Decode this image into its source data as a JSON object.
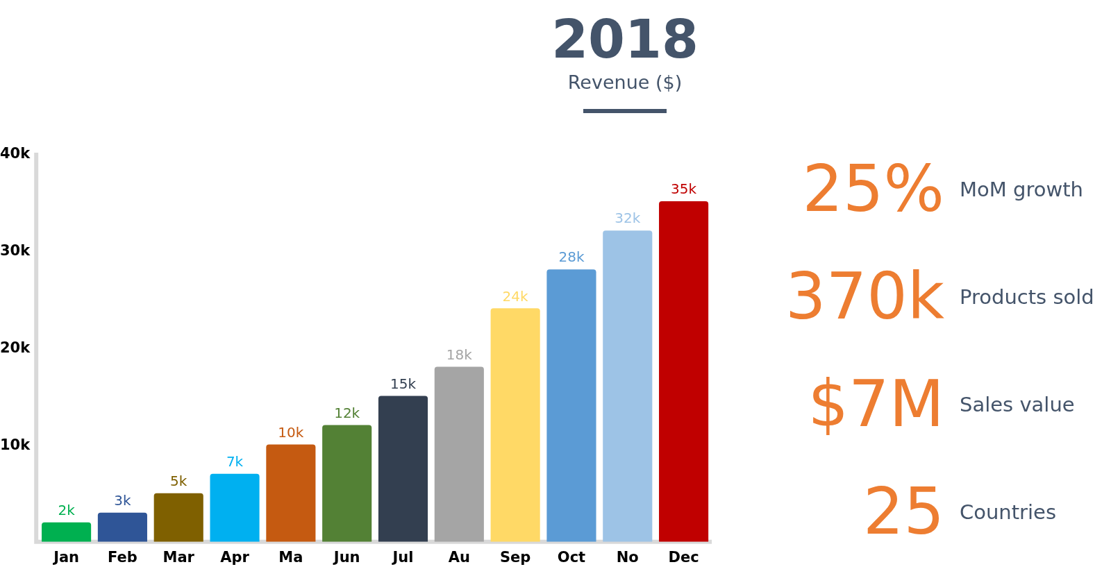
{
  "chart_data": [
    {
      "type": "bar",
      "title": "2018",
      "subtitle": "Revenue ($)",
      "categories": [
        "Jan",
        "Feb",
        "Mar",
        "Apr",
        "Ma",
        "Jun",
        "Jul",
        "Au",
        "Sep",
        "Oct",
        "No",
        "Dec"
      ],
      "values": [
        2,
        3,
        5,
        7,
        10,
        12,
        15,
        18,
        24,
        28,
        32,
        35
      ],
      "value_labels": [
        "2k",
        "3k",
        "5k",
        "7k",
        "10k",
        "12k",
        "15k",
        "18k",
        "24k",
        "28k",
        "32k",
        "35k"
      ],
      "colors": [
        "#00b050",
        "#2f5597",
        "#7f6000",
        "#00b0f0",
        "#c55a11",
        "#538135",
        "#333f50",
        "#a5a5a5",
        "#ffd966",
        "#5b9bd5",
        "#9dc3e6",
        "#c00000"
      ],
      "ylim": [
        0,
        40
      ],
      "yticks": [
        {
          "value": 10,
          "label": "10k"
        },
        {
          "value": 20,
          "label": "20k"
        },
        {
          "value": 30,
          "label": "30k"
        },
        {
          "value": 40,
          "label": "40k"
        }
      ],
      "grid": false,
      "legend": false
    },
    {
      "type": "other",
      "color": "#ed7d31",
      "annotations": [
        "25%",
        "MoM growth",
        "370k",
        "Products sold",
        "$7M",
        "Sales value",
        "25",
        "Countries"
      ]
    }
  ]
}
